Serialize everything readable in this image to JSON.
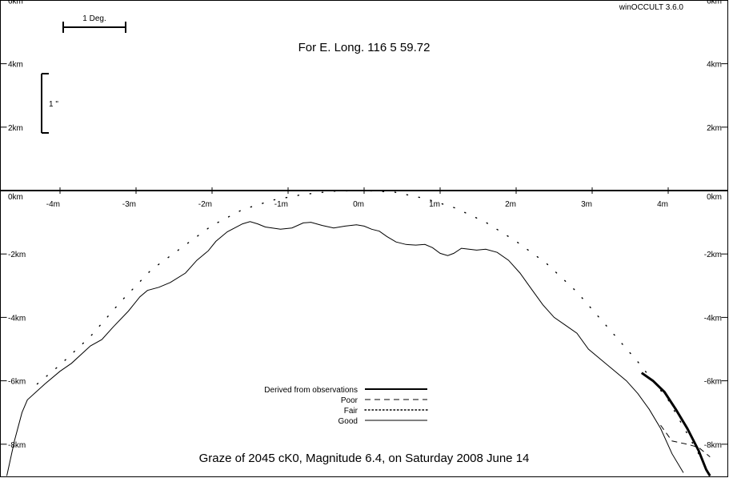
{
  "program_name": "winOCCULT 3.6.0",
  "longitude_label": "For E. Long.  116  5 59.72",
  "caption": "Graze of     2045  cK0,  Magnitude   6.4,  on Saturday  2008  June  14",
  "scale_bars": {
    "degree_label": "1 Deg.",
    "arcsec_label": "1 \""
  },
  "colors": {
    "background": "#ffffff",
    "ink": "#000000"
  },
  "chart_data": {
    "type": "line",
    "x_axis": {
      "unit": "km",
      "crossing_y_km": 0,
      "tick_labels": [
        "-4m",
        "-3m",
        "-2m",
        "-1m",
        "0m",
        "1m",
        "2m",
        "3m",
        "4m"
      ],
      "tick_values_min": [
        -4,
        -3,
        -2,
        -1,
        0,
        1,
        2,
        3,
        4
      ]
    },
    "y_axis": {
      "unit": "km",
      "range": [
        -9,
        6
      ],
      "tick_values": [
        6,
        4,
        2,
        0,
        -2,
        -4,
        -6,
        -8
      ],
      "tick_labels": [
        "6km",
        "4km",
        "2km",
        "0km",
        "-2km",
        "-4km",
        "-6km",
        "-8km"
      ]
    },
    "legend": [
      {
        "label": "Derived from observations",
        "style": "thick"
      },
      {
        "label": "Poor",
        "style": "dashed"
      },
      {
        "label": "Fair",
        "style": "dotted"
      },
      {
        "label": "Good",
        "style": "solid"
      }
    ],
    "series": [
      {
        "style": "solid",
        "points": [
          [
            -4.7,
            -9.0
          ],
          [
            -4.6,
            -7.9
          ],
          [
            -4.5,
            -7.0
          ],
          [
            -4.43,
            -6.6
          ],
          [
            -4.2,
            -6.1
          ],
          [
            -4.0,
            -5.7
          ],
          [
            -3.85,
            -5.45
          ],
          [
            -3.6,
            -4.9
          ],
          [
            -3.45,
            -4.7
          ],
          [
            -3.3,
            -4.3
          ],
          [
            -3.1,
            -3.8
          ],
          [
            -2.95,
            -3.35
          ],
          [
            -2.85,
            -3.15
          ],
          [
            -2.7,
            -3.05
          ],
          [
            -2.55,
            -2.9
          ],
          [
            -2.35,
            -2.6
          ],
          [
            -2.2,
            -2.2
          ],
          [
            -2.05,
            -1.9
          ],
          [
            -1.95,
            -1.6
          ],
          [
            -1.8,
            -1.3
          ],
          [
            -1.6,
            -1.05
          ],
          [
            -1.5,
            -0.98
          ],
          [
            -1.4,
            -1.05
          ],
          [
            -1.3,
            -1.15
          ],
          [
            -1.1,
            -1.22
          ],
          [
            -0.95,
            -1.18
          ],
          [
            -0.8,
            -1.02
          ],
          [
            -0.7,
            -1.0
          ],
          [
            -0.55,
            -1.1
          ],
          [
            -0.4,
            -1.18
          ],
          [
            -0.25,
            -1.12
          ],
          [
            -0.1,
            -1.08
          ],
          [
            0.0,
            -1.12
          ],
          [
            0.1,
            -1.22
          ],
          [
            0.2,
            -1.28
          ],
          [
            0.3,
            -1.45
          ],
          [
            0.42,
            -1.62
          ],
          [
            0.55,
            -1.7
          ],
          [
            0.68,
            -1.72
          ],
          [
            0.8,
            -1.7
          ],
          [
            0.9,
            -1.8
          ],
          [
            1.0,
            -1.98
          ],
          [
            1.1,
            -2.05
          ],
          [
            1.18,
            -1.98
          ],
          [
            1.28,
            -1.82
          ],
          [
            1.38,
            -1.85
          ],
          [
            1.48,
            -1.88
          ],
          [
            1.6,
            -1.85
          ],
          [
            1.75,
            -1.95
          ],
          [
            1.9,
            -2.2
          ],
          [
            2.05,
            -2.6
          ],
          [
            2.2,
            -3.1
          ],
          [
            2.35,
            -3.6
          ],
          [
            2.5,
            -4.0
          ],
          [
            2.65,
            -4.25
          ],
          [
            2.8,
            -4.5
          ],
          [
            2.95,
            -5.0
          ],
          [
            3.1,
            -5.3
          ],
          [
            3.25,
            -5.6
          ],
          [
            3.45,
            -6.0
          ],
          [
            3.6,
            -6.4
          ],
          [
            3.75,
            -6.9
          ],
          [
            3.9,
            -7.5
          ],
          [
            4.05,
            -8.3
          ],
          [
            4.2,
            -8.9
          ]
        ]
      },
      {
        "style": "dotted",
        "points": [
          [
            -4.3,
            -6.1
          ],
          [
            -4.0,
            -5.5
          ],
          [
            -3.6,
            -4.6
          ],
          [
            -3.2,
            -3.5
          ],
          [
            -2.8,
            -2.5
          ],
          [
            -2.4,
            -1.8
          ],
          [
            -2.0,
            -1.1
          ],
          [
            -1.6,
            -0.6
          ],
          [
            -1.2,
            -0.3
          ],
          [
            -0.8,
            -0.12
          ],
          [
            -0.4,
            -0.02
          ],
          [
            0.0,
            0.0
          ],
          [
            0.4,
            -0.05
          ],
          [
            0.8,
            -0.25
          ],
          [
            1.2,
            -0.55
          ],
          [
            1.6,
            -1.0
          ],
          [
            2.0,
            -1.6
          ],
          [
            2.4,
            -2.3
          ],
          [
            2.8,
            -3.2
          ],
          [
            3.2,
            -4.3
          ],
          [
            3.6,
            -5.4
          ],
          [
            4.0,
            -6.6
          ],
          [
            4.4,
            -8.3
          ]
        ]
      },
      {
        "style": "dashed",
        "points": [
          [
            3.9,
            -7.4
          ],
          [
            4.05,
            -7.9
          ],
          [
            4.25,
            -8.0
          ],
          [
            4.4,
            -8.1
          ],
          [
            4.55,
            -8.4
          ]
        ]
      },
      {
        "style": "thick",
        "points": [
          [
            3.65,
            -5.75
          ],
          [
            3.8,
            -6.0
          ],
          [
            3.95,
            -6.35
          ],
          [
            4.1,
            -6.9
          ],
          [
            4.25,
            -7.5
          ],
          [
            4.4,
            -8.2
          ],
          [
            4.5,
            -8.8
          ],
          [
            4.55,
            -9.0
          ]
        ]
      }
    ]
  }
}
